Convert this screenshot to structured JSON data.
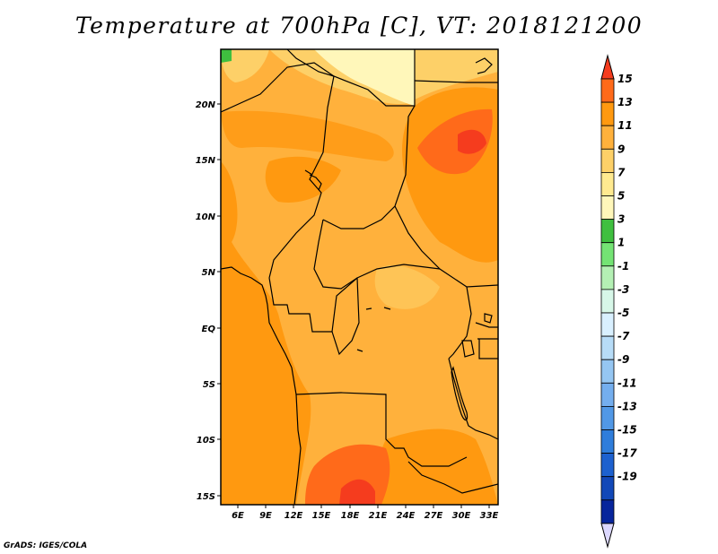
{
  "title": "Temperature at 700hPa [C], VT: 2018121200",
  "credit": "GrADS: IGES/COLA",
  "map": {
    "lat_labels": [
      "20N",
      "15N",
      "10N",
      "5N",
      "EQ",
      "5S",
      "10S",
      "15S"
    ],
    "lon_labels": [
      "6E",
      "9E",
      "12E",
      "15E",
      "18E",
      "21E",
      "24E",
      "27E",
      "30E",
      "33E"
    ]
  },
  "colorbar": {
    "labels": [
      "15",
      "13",
      "11",
      "9",
      "7",
      "5",
      "3",
      "1",
      "-1",
      "-3",
      "-5",
      "-7",
      "-9",
      "-11",
      "-13",
      "-15",
      "-17",
      "-19"
    ],
    "colors": [
      "#f53c1e",
      "#ff6a1a",
      "#ff9910",
      "#ffb13c",
      "#fdd068",
      "#ffea90",
      "#fff7ba",
      "#3fbf3f",
      "#74e374",
      "#b4f0b4",
      "#d7f7e8",
      "#d9f0ff",
      "#b7dcf7",
      "#95c6f2",
      "#74aeee",
      "#5198e6",
      "#2f7ddb",
      "#1d61cf",
      "#1248b8",
      "#07259c",
      "#0a0f6e"
    ]
  }
}
